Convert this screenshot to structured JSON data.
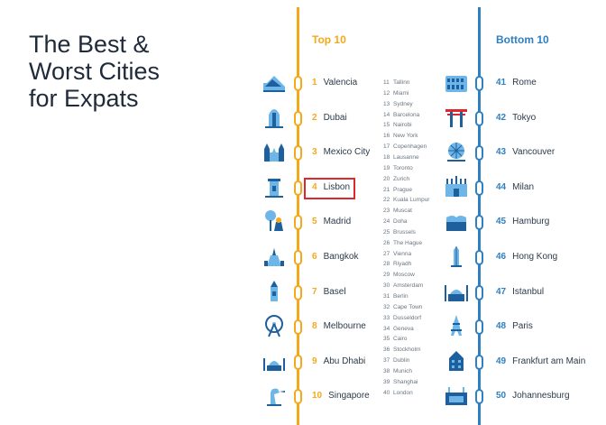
{
  "title": [
    "The Best &",
    "Worst Cities",
    "for Expats"
  ],
  "top_heading": "Top 10",
  "bottom_heading": "Bottom 10",
  "top": [
    {
      "rank": "1",
      "city": "Valencia",
      "icon": "valencia-arts-science-icon"
    },
    {
      "rank": "2",
      "city": "Dubai",
      "icon": "burj-al-arab-icon"
    },
    {
      "rank": "3",
      "city": "Mexico City",
      "icon": "cathedral-icon"
    },
    {
      "rank": "4",
      "city": "Lisbon",
      "icon": "belem-tower-icon"
    },
    {
      "rank": "5",
      "city": "Madrid",
      "icon": "bear-strawberry-tree-icon"
    },
    {
      "rank": "6",
      "city": "Bangkok",
      "icon": "temple-icon"
    },
    {
      "rank": "7",
      "city": "Basel",
      "icon": "minster-tower-icon"
    },
    {
      "rank": "8",
      "city": "Melbourne",
      "icon": "ferris-wheel-icon"
    },
    {
      "rank": "9",
      "city": "Abu Dhabi",
      "icon": "mosque-icon"
    },
    {
      "rank": "10",
      "city": "Singapore",
      "icon": "merlion-icon"
    }
  ],
  "middle": [
    {
      "rank": "11",
      "city": "Tallinn"
    },
    {
      "rank": "12",
      "city": "Miami"
    },
    {
      "rank": "13",
      "city": "Sydney"
    },
    {
      "rank": "14",
      "city": "Barcelona"
    },
    {
      "rank": "15",
      "city": "Nairobi"
    },
    {
      "rank": "16",
      "city": "New York"
    },
    {
      "rank": "17",
      "city": "Copenhagen"
    },
    {
      "rank": "18",
      "city": "Lausanne"
    },
    {
      "rank": "19",
      "city": "Toronto"
    },
    {
      "rank": "20",
      "city": "Zurich"
    },
    {
      "rank": "21",
      "city": "Prague"
    },
    {
      "rank": "22",
      "city": "Kuala Lumpur"
    },
    {
      "rank": "23",
      "city": "Muscat"
    },
    {
      "rank": "24",
      "city": "Doha"
    },
    {
      "rank": "25",
      "city": "Brussels"
    },
    {
      "rank": "26",
      "city": "The Hague"
    },
    {
      "rank": "27",
      "city": "Vienna"
    },
    {
      "rank": "28",
      "city": "Riyadh"
    },
    {
      "rank": "29",
      "city": "Moscow"
    },
    {
      "rank": "30",
      "city": "Amsterdam"
    },
    {
      "rank": "31",
      "city": "Berlin"
    },
    {
      "rank": "32",
      "city": "Cape Town"
    },
    {
      "rank": "33",
      "city": "Dusseldorf"
    },
    {
      "rank": "34",
      "city": "Geneva"
    },
    {
      "rank": "35",
      "city": "Cairo"
    },
    {
      "rank": "36",
      "city": "Stockholm"
    },
    {
      "rank": "37",
      "city": "Dublin"
    },
    {
      "rank": "38",
      "city": "Munich"
    },
    {
      "rank": "39",
      "city": "Shanghai"
    },
    {
      "rank": "40",
      "city": "London"
    }
  ],
  "bottom": [
    {
      "rank": "41",
      "city": "Rome",
      "icon": "colosseum-icon"
    },
    {
      "rank": "42",
      "city": "Tokyo",
      "icon": "torii-gate-icon"
    },
    {
      "rank": "43",
      "city": "Vancouver",
      "icon": "science-dome-icon"
    },
    {
      "rank": "44",
      "city": "Milan",
      "icon": "duomo-icon"
    },
    {
      "rank": "45",
      "city": "Hamburg",
      "icon": "elbphilharmonie-icon"
    },
    {
      "rank": "46",
      "city": "Hong Kong",
      "icon": "skyscraper-icon"
    },
    {
      "rank": "47",
      "city": "Istanbul",
      "icon": "blue-mosque-icon"
    },
    {
      "rank": "48",
      "city": "Paris",
      "icon": "eiffel-tower-icon"
    },
    {
      "rank": "49",
      "city": "Frankfurt am Main",
      "icon": "old-town-house-icon"
    },
    {
      "rank": "50",
      "city": "Johannesburg",
      "icon": "stadium-icon"
    }
  ],
  "highlight": "Lisbon",
  "colors": {
    "top": "#f4a81c",
    "bottom": "#2f7fc1",
    "icon_dark": "#1e5f9e",
    "icon_light": "#6fb6e8",
    "highlight": "#e0282c"
  }
}
